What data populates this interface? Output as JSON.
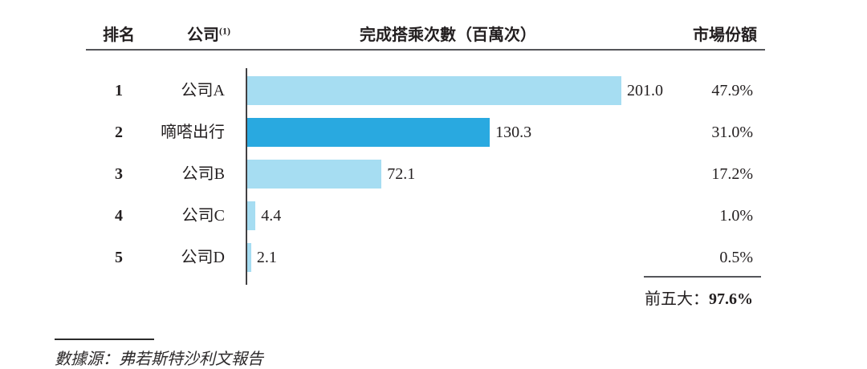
{
  "table": {
    "headers": {
      "rank": "排名",
      "company": "公司",
      "company_sup": "(1)",
      "rides": "完成搭乘次數（百萬次）",
      "share": "市場份額"
    }
  },
  "chart_data": {
    "type": "bar",
    "orientation": "horizontal",
    "title": "",
    "xlabel": "完成搭乘次數（百萬次）",
    "ylabel": "",
    "xlim": [
      0,
      201
    ],
    "grid": false,
    "legend": "none",
    "categories": [
      "公司A",
      "嘀嗒出行",
      "公司B",
      "公司C",
      "公司D"
    ],
    "values": [
      201.0,
      130.3,
      72.1,
      4.4,
      2.1
    ],
    "colors": {
      "default": "#A6DDF2",
      "highlight": "#29A9E0"
    },
    "rows": [
      {
        "rank": "1",
        "company": "公司A",
        "value": 201.0,
        "value_label": "201.0",
        "share": "47.9%",
        "highlight": false
      },
      {
        "rank": "2",
        "company": "嘀嗒出行",
        "value": 130.3,
        "value_label": "130.3",
        "share": "31.0%",
        "highlight": true
      },
      {
        "rank": "3",
        "company": "公司B",
        "value": 72.1,
        "value_label": "72.1",
        "share": "17.2%",
        "highlight": false
      },
      {
        "rank": "4",
        "company": "公司C",
        "value": 4.4,
        "value_label": "4.4",
        "share": "1.0%",
        "highlight": false
      },
      {
        "rank": "5",
        "company": "公司D",
        "value": 2.1,
        "value_label": "2.1",
        "share": "0.5%",
        "highlight": false
      }
    ],
    "total_label": "前五大：",
    "total_value": "97.6%"
  },
  "footnote": {
    "source": "數據源：弗若斯特沙利文報告"
  }
}
